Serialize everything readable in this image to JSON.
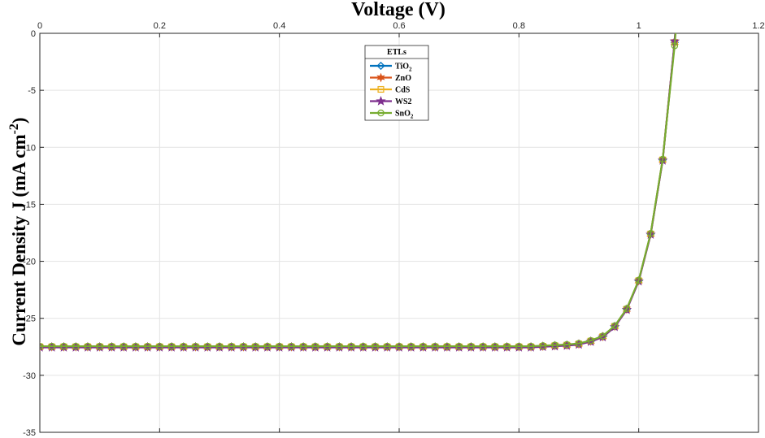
{
  "chart_data": {
    "type": "line",
    "xlabel": "Voltage (V)",
    "ylabel": "Current Density J (mA cm",
    "ylabel_sup": "-2",
    "ylabel_end": ")",
    "xlim": [
      0,
      1.2
    ],
    "ylim": [
      -35,
      0
    ],
    "xticks": [
      0,
      0.2,
      0.4,
      0.6,
      0.8,
      1,
      1.2
    ],
    "yticks": [
      0,
      -5,
      -10,
      -15,
      -20,
      -25,
      -30,
      -35
    ],
    "grid": true,
    "legend": {
      "title": "ETLs",
      "placement": "top-center",
      "entries": [
        {
          "base": "TiO",
          "sub": "2",
          "color": "#0072BD",
          "marker": "diamond"
        },
        {
          "base": "ZnO",
          "sub": "",
          "color": "#D95319",
          "marker": "star6"
        },
        {
          "base": "CdS",
          "sub": "",
          "color": "#EDB120",
          "marker": "square"
        },
        {
          "base": "WS2",
          "sub": "",
          "color": "#7E2F8E",
          "marker": "star5"
        },
        {
          "base": "SnO",
          "sub": "2",
          "color": "#77AC30",
          "marker": "circle"
        }
      ]
    },
    "x": [
      0,
      0.02,
      0.04,
      0.06,
      0.08,
      0.1,
      0.12,
      0.14,
      0.16,
      0.18,
      0.2,
      0.22,
      0.24,
      0.26,
      0.28,
      0.3,
      0.32,
      0.34,
      0.36,
      0.38,
      0.4,
      0.42,
      0.44,
      0.46,
      0.48,
      0.5,
      0.52,
      0.54,
      0.56,
      0.58,
      0.6,
      0.62,
      0.64,
      0.66,
      0.68,
      0.7,
      0.72,
      0.74,
      0.76,
      0.78,
      0.8,
      0.82,
      0.84,
      0.86,
      0.88,
      0.9,
      0.92,
      0.94,
      0.96,
      0.98,
      1.0,
      1.02,
      1.04,
      1.06
    ],
    "series": [
      {
        "name": "TiO2",
        "values": [
          -27.5,
          -27.5,
          -27.5,
          -27.5,
          -27.5,
          -27.5,
          -27.5,
          -27.5,
          -27.5,
          -27.5,
          -27.5,
          -27.5,
          -27.5,
          -27.5,
          -27.5,
          -27.5,
          -27.5,
          -27.5,
          -27.5,
          -27.5,
          -27.5,
          -27.5,
          -27.5,
          -27.5,
          -27.5,
          -27.5,
          -27.5,
          -27.5,
          -27.5,
          -27.5,
          -27.5,
          -27.5,
          -27.5,
          -27.5,
          -27.5,
          -27.5,
          -27.5,
          -27.5,
          -27.5,
          -27.5,
          -27.5,
          -27.5,
          -27.45,
          -27.4,
          -27.35,
          -27.25,
          -27.0,
          -26.6,
          -25.7,
          -24.2,
          -21.7,
          -17.6,
          -11.1,
          -0.8
        ]
      },
      {
        "name": "ZnO",
        "values": [
          -27.5,
          -27.5,
          -27.5,
          -27.5,
          -27.5,
          -27.5,
          -27.5,
          -27.5,
          -27.5,
          -27.5,
          -27.5,
          -27.5,
          -27.5,
          -27.5,
          -27.5,
          -27.5,
          -27.5,
          -27.5,
          -27.5,
          -27.5,
          -27.5,
          -27.5,
          -27.5,
          -27.5,
          -27.5,
          -27.5,
          -27.5,
          -27.5,
          -27.5,
          -27.5,
          -27.5,
          -27.5,
          -27.5,
          -27.5,
          -27.5,
          -27.5,
          -27.5,
          -27.5,
          -27.5,
          -27.5,
          -27.5,
          -27.5,
          -27.45,
          -27.4,
          -27.35,
          -27.25,
          -27.0,
          -26.6,
          -25.7,
          -24.2,
          -21.7,
          -17.6,
          -11.1,
          -0.8
        ]
      },
      {
        "name": "CdS",
        "values": [
          -27.5,
          -27.5,
          -27.5,
          -27.5,
          -27.5,
          -27.5,
          -27.5,
          -27.5,
          -27.5,
          -27.5,
          -27.5,
          -27.5,
          -27.5,
          -27.5,
          -27.5,
          -27.5,
          -27.5,
          -27.5,
          -27.5,
          -27.5,
          -27.5,
          -27.5,
          -27.5,
          -27.5,
          -27.5,
          -27.5,
          -27.5,
          -27.5,
          -27.5,
          -27.5,
          -27.5,
          -27.5,
          -27.5,
          -27.5,
          -27.5,
          -27.5,
          -27.5,
          -27.5,
          -27.5,
          -27.5,
          -27.5,
          -27.5,
          -27.45,
          -27.4,
          -27.35,
          -27.25,
          -27.0,
          -26.6,
          -25.7,
          -24.2,
          -21.7,
          -17.6,
          -11.1,
          -0.8
        ]
      },
      {
        "name": "WS2",
        "values": [
          -27.55,
          -27.55,
          -27.55,
          -27.55,
          -27.55,
          -27.55,
          -27.55,
          -27.55,
          -27.55,
          -27.55,
          -27.55,
          -27.55,
          -27.55,
          -27.55,
          -27.55,
          -27.55,
          -27.55,
          -27.55,
          -27.55,
          -27.55,
          -27.55,
          -27.55,
          -27.55,
          -27.55,
          -27.55,
          -27.55,
          -27.55,
          -27.55,
          -27.55,
          -27.55,
          -27.55,
          -27.55,
          -27.55,
          -27.55,
          -27.55,
          -27.55,
          -27.55,
          -27.55,
          -27.55,
          -27.55,
          -27.55,
          -27.55,
          -27.5,
          -27.45,
          -27.4,
          -27.3,
          -27.05,
          -26.65,
          -25.75,
          -24.25,
          -21.75,
          -17.65,
          -11.15,
          -0.7
        ]
      },
      {
        "name": "SnO2",
        "values": [
          -27.45,
          -27.45,
          -27.45,
          -27.45,
          -27.45,
          -27.45,
          -27.45,
          -27.45,
          -27.45,
          -27.45,
          -27.45,
          -27.45,
          -27.45,
          -27.45,
          -27.45,
          -27.45,
          -27.45,
          -27.45,
          -27.45,
          -27.45,
          -27.45,
          -27.45,
          -27.45,
          -27.45,
          -27.45,
          -27.45,
          -27.45,
          -27.45,
          -27.45,
          -27.45,
          -27.45,
          -27.45,
          -27.45,
          -27.45,
          -27.45,
          -27.45,
          -27.45,
          -27.45,
          -27.45,
          -27.45,
          -27.45,
          -27.45,
          -27.4,
          -27.35,
          -27.3,
          -27.2,
          -26.95,
          -26.55,
          -25.65,
          -24.15,
          -21.65,
          -17.55,
          -11.05,
          -1.1
        ]
      }
    ]
  }
}
